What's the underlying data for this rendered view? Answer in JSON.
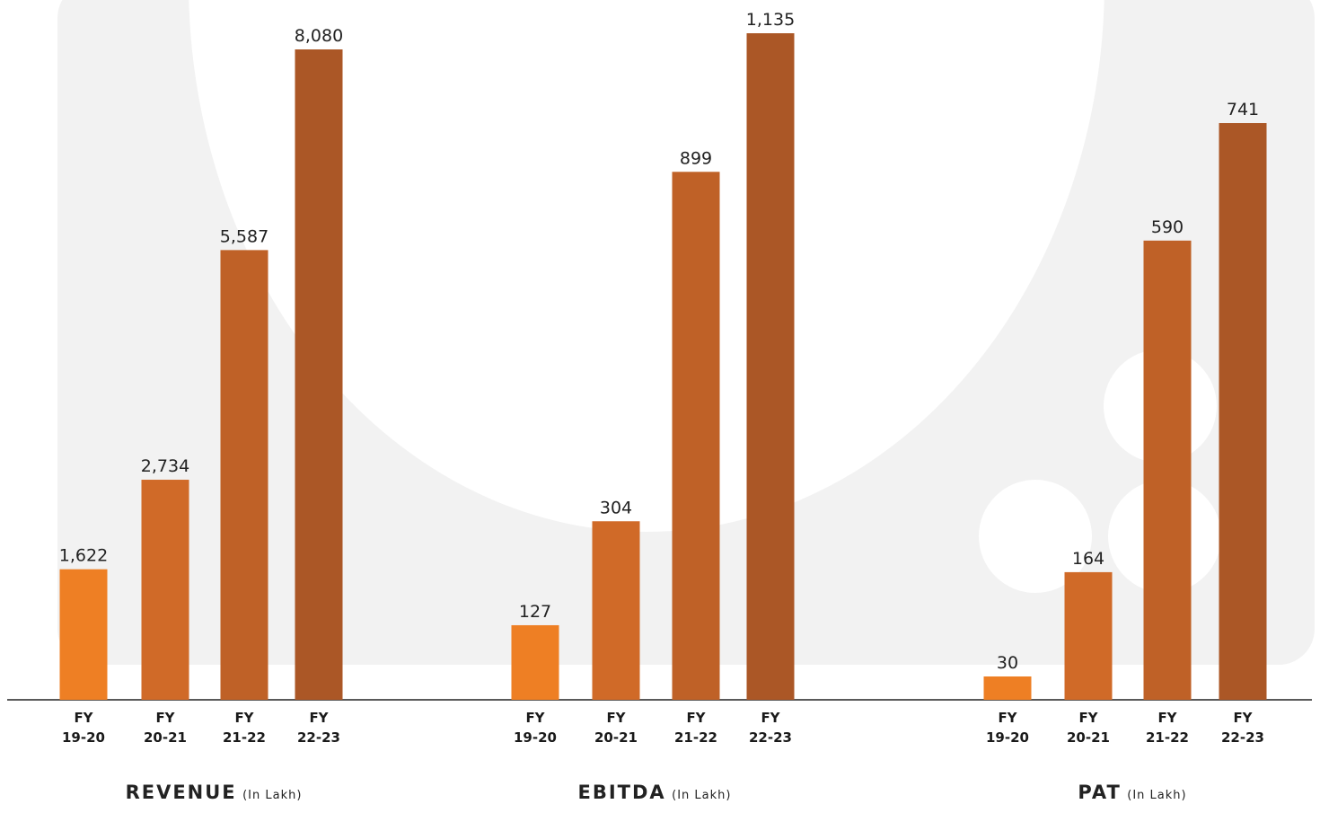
{
  "chart_data": [
    {
      "type": "bar",
      "title": "REVENUE",
      "unit": "(In Lakh)",
      "categories": [
        [
          "FY",
          "19-20"
        ],
        [
          "FY",
          "20-21"
        ],
        [
          "FY",
          "21-22"
        ],
        [
          "FY",
          "22-23"
        ]
      ],
      "values": [
        1622,
        2734,
        5587,
        8080
      ],
      "value_labels": [
        "1,622",
        "2,734",
        "5,587",
        "8,080"
      ],
      "ylim": [
        0,
        8080
      ]
    },
    {
      "type": "bar",
      "title": "EBITDA",
      "unit": "(In Lakh)",
      "categories": [
        [
          "FY",
          "19-20"
        ],
        [
          "FY",
          "20-21"
        ],
        [
          "FY",
          "21-22"
        ],
        [
          "FY",
          "22-23"
        ]
      ],
      "values": [
        127,
        304,
        899,
        1135
      ],
      "value_labels": [
        "127",
        "304",
        "899",
        "1,135"
      ],
      "ylim": [
        0,
        1135
      ]
    },
    {
      "type": "bar",
      "title": "PAT",
      "unit": "(In Lakh)",
      "categories": [
        [
          "FY",
          "19-20"
        ],
        [
          "FY",
          "20-21"
        ],
        [
          "FY",
          "21-22"
        ],
        [
          "FY",
          "22-23"
        ]
      ],
      "values": [
        30,
        164,
        590,
        741
      ],
      "value_labels": [
        "30",
        "164",
        "590",
        "741"
      ],
      "ylim": [
        0,
        741
      ]
    }
  ],
  "colors": {
    "bar_fy19_20": "#EE7F24",
    "bar_fy20_21": "#D06A28",
    "bar_fy21_22": "#BF6127",
    "bar_fy22_23": "#AB5726",
    "axis": "#222222",
    "background_shape": "#F2F2F2"
  }
}
